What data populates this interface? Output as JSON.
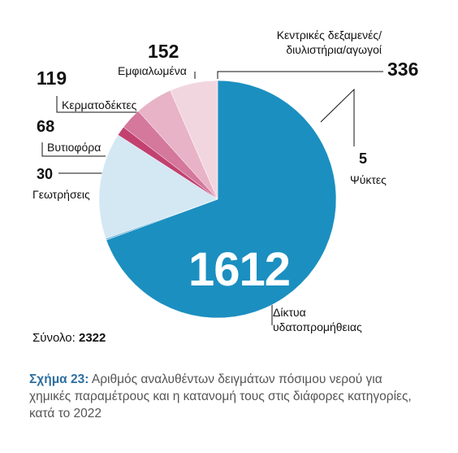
{
  "chart_data": {
    "type": "pie",
    "categories": [
      "Δίκτυα υδατοπρομήθειας",
      "Ψύκτες",
      "Κεντρικές δεξαμενές/ διυλιστήρια/αγωγοί",
      "Γεωτρήσεις",
      "Βυτιοφόρα",
      "Κερματοδέκτες",
      "Εμφιαλωμένα"
    ],
    "values": [
      1612,
      5,
      336,
      30,
      68,
      119,
      152
    ],
    "colors": [
      "#1b8fc0",
      "#6db5da",
      "#d3e8f3",
      "#c2416f",
      "#d4789c",
      "#e8b3c6",
      "#f2d6df"
    ],
    "total_label": "Σύνολο:",
    "total": 2322,
    "caption_label": "Σχήμα 23:",
    "caption": "Αριθμός αναλυθέντων δειγμάτων πόσιμου νερού για χημικές παραμέτρους και η κατανομή τους στις διάφορες κατηγορίες, κατά το 2022"
  }
}
